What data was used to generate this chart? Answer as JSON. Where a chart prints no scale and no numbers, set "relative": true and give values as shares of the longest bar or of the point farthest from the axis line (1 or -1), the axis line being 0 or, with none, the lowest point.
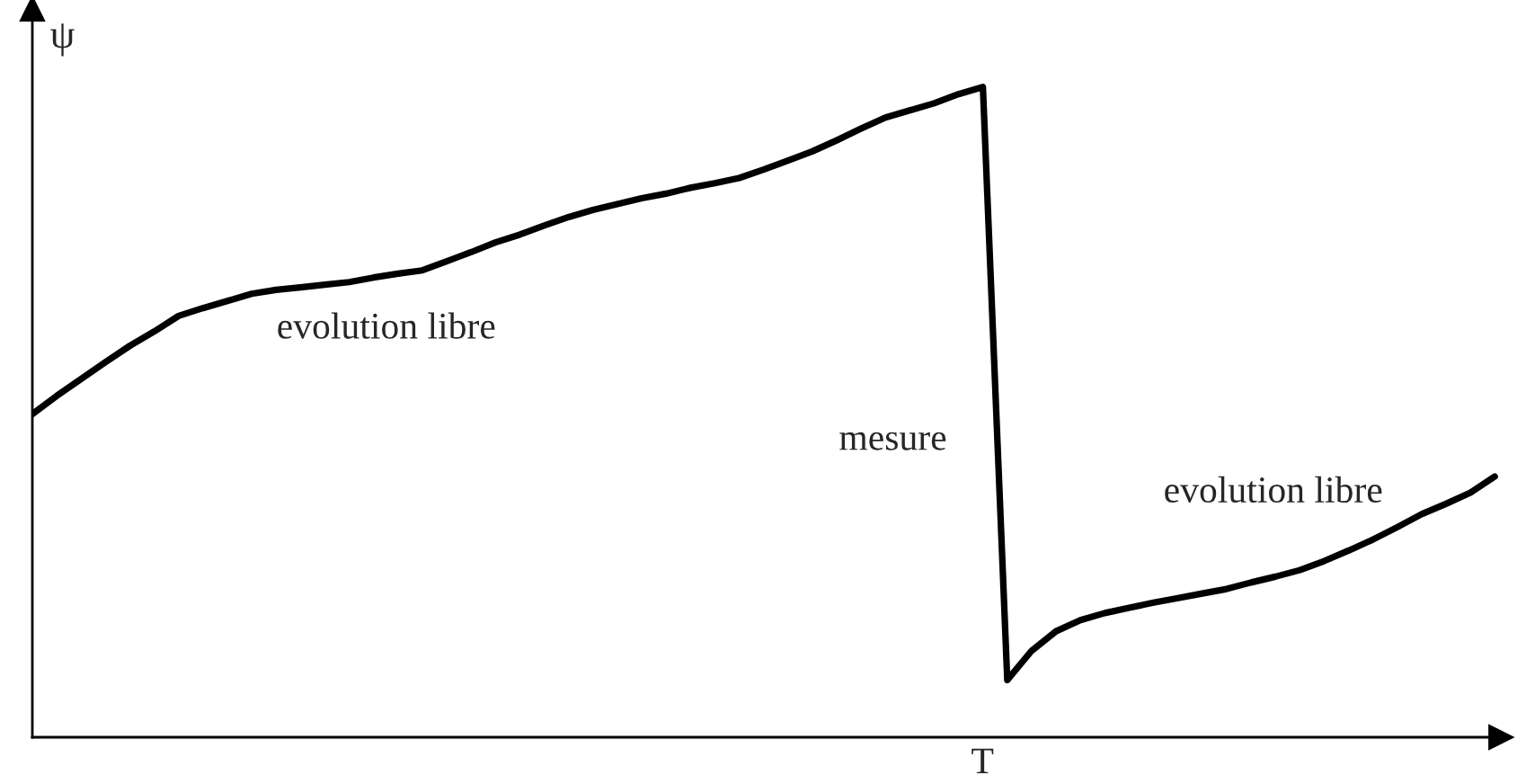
{
  "chart_data": {
    "type": "line",
    "relative": true,
    "ylabel": "ψ",
    "categories": [
      null,
      null,
      null,
      null,
      null,
      null,
      null,
      null,
      null,
      null,
      null,
      null,
      null,
      null,
      null,
      null,
      null,
      null,
      null,
      null,
      null,
      null,
      null,
      null,
      null,
      null,
      null,
      null,
      null,
      null,
      null,
      null,
      null,
      null,
      null,
      null,
      null,
      null,
      null,
      null,
      null,
      null,
      null,
      null,
      null,
      null,
      null,
      null,
      null,
      null,
      null,
      null,
      null,
      null,
      null,
      null,
      null,
      null,
      null,
      null,
      null
    ],
    "series": [
      {
        "color": "#000000",
        "values": [
          0.497,
          0.525,
          0.551,
          0.577,
          0.602,
          0.624,
          0.648,
          0.66,
          0.671,
          0.682,
          0.688,
          0.692,
          0.696,
          0.7,
          0.707,
          0.713,
          0.718,
          0.732,
          0.746,
          0.761,
          0.773,
          0.787,
          0.8,
          0.811,
          0.82,
          0.829,
          0.836,
          0.845,
          0.852,
          0.86,
          0.873,
          0.887,
          0.901,
          0.918,
          0.936,
          0.953,
          0.964,
          0.975,
          0.989,
          1,
          0.088,
          0.133,
          0.163,
          0.18,
          0.191,
          0.199,
          0.207,
          0.214,
          0.221,
          0.228,
          0.238,
          0.247,
          0.257,
          0.271,
          0.287,
          0.304,
          0.323,
          0.343,
          0.359,
          0.376,
          0.401
        ]
      }
    ],
    "annotations": [
      "evolution libre",
      "mesure",
      "evolution libre",
      "T"
    ],
    "marker": "none",
    "line_style": "solid"
  }
}
